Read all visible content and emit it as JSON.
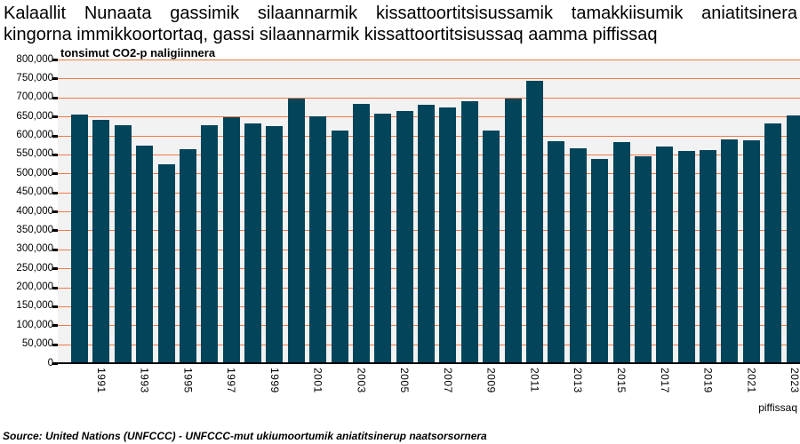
{
  "title": {
    "line1": "Kalaallit Nunaata gassimik silaannarmik kissattoortitsisussamik tamakkiisumik aniatitsinera",
    "line2": "kingorna immikkoortortaq, gassi silaannarmik kissattoortitsisussaq aamma piffissaq"
  },
  "source_note": "Source: United Nations (UNFCCC) - UNFCCC-mut ukiumoortumik aniatitsinerup naatsorsornera",
  "chart_data": {
    "type": "bar",
    "title": "Kalaallit Nunaata gassimik silaannarmik kissattoortitsisussamik tamakkiisumik aniatitsinera kingorna immikkoortortaq, gassi silaannarmik kissattoortitsisussaq aamma piffissaq",
    "ylabel": "tonsimut CO2-p naligiinnera",
    "xlabel": "piffissaq",
    "ylim": [
      0,
      800000
    ],
    "y_tick_step": 50000,
    "grid": true,
    "y_tick_labels": [
      "800,000",
      "750,000",
      "700,000",
      "650,000",
      "600,000",
      "550,000",
      "500,000",
      "450,000",
      "400,000",
      "350,000",
      "300,000",
      "250,000",
      "200,000",
      "150,000",
      "100,000",
      "50,000",
      "0"
    ],
    "x_tick_labels": [
      "1991",
      "1993",
      "1995",
      "1997",
      "1999",
      "2001",
      "2003",
      "2005",
      "2007",
      "2009",
      "2011",
      "2013",
      "2015",
      "2017",
      "2019",
      "2021",
      "2023"
    ],
    "years": [
      1990,
      1991,
      1992,
      1993,
      1994,
      1995,
      1996,
      1997,
      1998,
      1999,
      2000,
      2001,
      2002,
      2003,
      2004,
      2005,
      2006,
      2007,
      2008,
      2009,
      2010,
      2011,
      2012,
      2013,
      2014,
      2015,
      2016,
      2017,
      2018,
      2019,
      2020,
      2021,
      2022,
      2023
    ],
    "values": [
      655000,
      640000,
      626000,
      573000,
      523000,
      564000,
      628000,
      648000,
      632000,
      625000,
      698000,
      651000,
      613000,
      684000,
      657000,
      665000,
      680000,
      673000,
      691000,
      614000,
      698000,
      744000,
      584000,
      566000,
      537000,
      582000,
      545000,
      571000,
      560000,
      562000,
      589000,
      587000,
      631000,
      652000
    ],
    "colors": {
      "bar": "#02455a",
      "gridline": "#ee7a48",
      "plot_background": "#f2f2f2",
      "axis": "#000000",
      "text": "#000000"
    }
  }
}
